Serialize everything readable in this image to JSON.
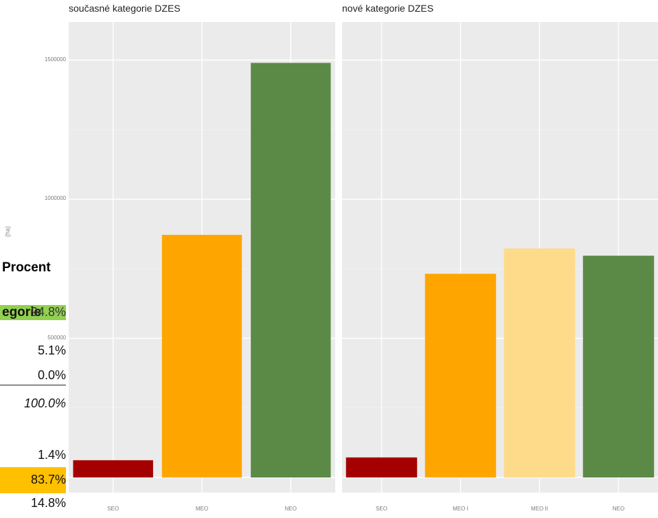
{
  "chart_data": [
    {
      "type": "bar",
      "title": "současné kategorie DZES",
      "categories": [
        "SEO",
        "MEO",
        "NEO"
      ],
      "values": [
        62000,
        872000,
        1490000
      ],
      "colors": [
        "#a50000",
        "#ffa500",
        "#5b8a46"
      ],
      "ylim": [
        0,
        1500000
      ],
      "ytick_labels": [
        "500000",
        "1000000",
        "1500000"
      ],
      "ylabel": "(ha)",
      "grid": true
    },
    {
      "type": "bar",
      "title": "nové kategorie DZES",
      "categories": [
        "SEO",
        "MEO I",
        "MEO II",
        "NEO"
      ],
      "values": [
        72000,
        732000,
        823000,
        797000
      ],
      "colors": [
        "#a50000",
        "#ffa500",
        "#fddb8a",
        "#5b8a46"
      ],
      "ylim": [
        0,
        1500000
      ],
      "grid": true
    }
  ],
  "overlay_table": {
    "header": "Procent",
    "green_row": "egorie",
    "green_value": "94.8%",
    "rows": [
      "5.1%",
      "0.0%"
    ],
    "total": "100.0%",
    "rows2": [
      "1.4%",
      "83.7%",
      "14.8%"
    ]
  }
}
